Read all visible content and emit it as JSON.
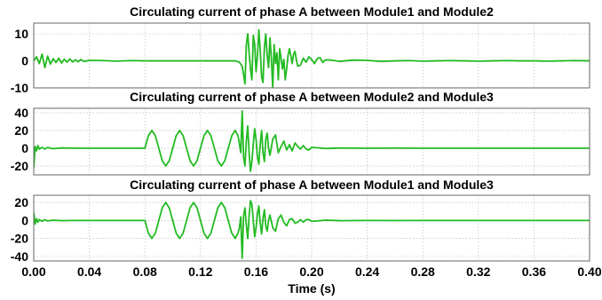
{
  "chart_data": [
    {
      "type": "line",
      "title": "Circulating current of phase A between Module1 and Module2",
      "xlabel": "",
      "ylabel": "",
      "xlim": [
        0.0,
        0.4
      ],
      "ylim": [
        -10,
        14
      ],
      "yticks": [
        10,
        0,
        -10
      ],
      "ytick_labels": [
        "10",
        "0",
        "-10"
      ],
      "grid": true,
      "series": [
        {
          "color": "#22bb22",
          "x": [
            0.0,
            0.002,
            0.004,
            0.006,
            0.008,
            0.01,
            0.012,
            0.014,
            0.016,
            0.018,
            0.02,
            0.022,
            0.024,
            0.026,
            0.028,
            0.03,
            0.032,
            0.034,
            0.036,
            0.04,
            0.05,
            0.06,
            0.07,
            0.08,
            0.09,
            0.1,
            0.11,
            0.12,
            0.13,
            0.14,
            0.145,
            0.148,
            0.15,
            0.151,
            0.152,
            0.153,
            0.154,
            0.155,
            0.156,
            0.157,
            0.158,
            0.159,
            0.16,
            0.161,
            0.162,
            0.163,
            0.164,
            0.165,
            0.166,
            0.167,
            0.168,
            0.169,
            0.17,
            0.171,
            0.172,
            0.173,
            0.174,
            0.175,
            0.176,
            0.177,
            0.178,
            0.179,
            0.18,
            0.181,
            0.182,
            0.183,
            0.184,
            0.185,
            0.186,
            0.187,
            0.188,
            0.189,
            0.19,
            0.192,
            0.194,
            0.196,
            0.198,
            0.2,
            0.202,
            0.204,
            0.206,
            0.208,
            0.21,
            0.214,
            0.22,
            0.23,
            0.24,
            0.25,
            0.26,
            0.27,
            0.28,
            0.29,
            0.3,
            0.31,
            0.32,
            0.33,
            0.34,
            0.35,
            0.36,
            0.37,
            0.38,
            0.39,
            0.4
          ],
          "y": [
            0,
            1.5,
            -1.0,
            2.5,
            -2.5,
            1.8,
            -1.2,
            0.8,
            -0.6,
            1.0,
            -0.8,
            0.6,
            -0.5,
            0.7,
            -0.4,
            0.4,
            -0.3,
            0.5,
            -0.2,
            0.2,
            0.1,
            -0.1,
            0.1,
            0.0,
            0.0,
            0.0,
            0.0,
            0.0,
            0.0,
            0.0,
            0.0,
            -0.5,
            -2.0,
            -5.0,
            -8.5,
            6.0,
            10.0,
            3.0,
            -3.0,
            -7.0,
            9.5,
            6.0,
            -4.0,
            2.0,
            11.5,
            4.0,
            -6.0,
            -8.0,
            5.0,
            10.0,
            2.0,
            -2.5,
            8.5,
            1.0,
            -10.0,
            6.0,
            -1.0,
            3.0,
            -7.0,
            4.5,
            1.0,
            -3.0,
            0.5,
            -7.0,
            -3.0,
            2.0,
            4.5,
            2.0,
            -1.0,
            2.5,
            3.5,
            0.5,
            -2.0,
            -1.5,
            1.0,
            -0.5,
            1.5,
            0.5,
            -1.0,
            0.8,
            1.2,
            -0.6,
            0.4,
            0.3,
            -0.2,
            0.3,
            0.2,
            -0.2,
            0.0,
            0.1,
            -0.1,
            0.0,
            0.1,
            0.0,
            -0.1,
            0.0,
            0.1,
            0.0,
            0.0,
            -0.1,
            0.0,
            0.1,
            0.0
          ]
        }
      ]
    },
    {
      "type": "line",
      "title": "Circulating current of phase A between Module2 and Module3",
      "xlabel": "",
      "ylabel": "",
      "xlim": [
        0.0,
        0.4
      ],
      "ylim": [
        -30,
        45
      ],
      "yticks": [
        40,
        20,
        0,
        -20
      ],
      "ytick_labels": [
        "40",
        "20",
        "0",
        "-20"
      ],
      "grid": true,
      "series": [
        {
          "color": "#22bb22",
          "x": [
            0.0,
            0.001,
            0.002,
            0.003,
            0.004,
            0.006,
            0.008,
            0.01,
            0.014,
            0.02,
            0.03,
            0.04,
            0.05,
            0.06,
            0.07,
            0.078,
            0.08,
            0.0825,
            0.085,
            0.0875,
            0.09,
            0.0925,
            0.095,
            0.0975,
            0.1,
            0.1025,
            0.105,
            0.1075,
            0.11,
            0.1125,
            0.115,
            0.1175,
            0.12,
            0.1225,
            0.125,
            0.1275,
            0.13,
            0.1325,
            0.135,
            0.1375,
            0.14,
            0.1425,
            0.145,
            0.147,
            0.148,
            0.149,
            0.15,
            0.151,
            0.152,
            0.153,
            0.154,
            0.155,
            0.156,
            0.157,
            0.158,
            0.159,
            0.16,
            0.161,
            0.162,
            0.163,
            0.164,
            0.165,
            0.166,
            0.167,
            0.168,
            0.169,
            0.17,
            0.172,
            0.174,
            0.176,
            0.178,
            0.18,
            0.182,
            0.184,
            0.186,
            0.188,
            0.19,
            0.192,
            0.194,
            0.196,
            0.198,
            0.2,
            0.204,
            0.21,
            0.22,
            0.24,
            0.26,
            0.28,
            0.3,
            0.32,
            0.34,
            0.36,
            0.38,
            0.4
          ],
          "y": [
            -22,
            2,
            -3,
            3,
            -1,
            1,
            -1,
            0.8,
            -0.5,
            0.3,
            0,
            0,
            0,
            0,
            0,
            0,
            0,
            14.1,
            20,
            14.1,
            0,
            -14.1,
            -20,
            -14.1,
            0,
            14.1,
            20,
            14.1,
            0,
            -14.1,
            -20,
            -14.1,
            0,
            14.1,
            20,
            14.1,
            0,
            -14.1,
            -20,
            -14.1,
            0,
            14.1,
            20,
            14.1,
            5,
            -5,
            42,
            -10,
            -20,
            8,
            25,
            -5,
            -26,
            -15,
            5,
            22,
            10,
            -10,
            -18,
            5,
            20,
            -5,
            -15,
            10,
            17,
            0,
            -8,
            10,
            15,
            -5,
            2,
            8,
            -2,
            4,
            -3,
            6,
            2,
            -1,
            3,
            -1,
            -2,
            1,
            0.5,
            -0.3,
            0.2,
            0,
            0.1,
            0,
            0,
            0,
            0,
            0,
            0,
            0
          ]
        }
      ]
    },
    {
      "type": "line",
      "title": "Circulating current of phase A between Module1 and Module3",
      "xlabel": "Time (s)",
      "ylabel": "",
      "xlim": [
        0.0,
        0.4
      ],
      "ylim": [
        -45,
        28
      ],
      "xticks": [
        0.0,
        0.04,
        0.08,
        0.12,
        0.16,
        0.2,
        0.24,
        0.28,
        0.32,
        0.36,
        0.4
      ],
      "xtick_labels": [
        "0.00",
        "0.04",
        "0.08",
        "0.12",
        "0.16",
        "0.20",
        "0.24",
        "0.28",
        "0.32",
        "0.36",
        "0.40"
      ],
      "yticks": [
        20,
        0,
        -20,
        -40
      ],
      "ytick_labels": [
        "20",
        "0",
        "-20",
        "-40"
      ],
      "grid": true,
      "series": [
        {
          "color": "#22bb22",
          "x": [
            0.0,
            0.001,
            0.002,
            0.003,
            0.004,
            0.006,
            0.008,
            0.01,
            0.014,
            0.02,
            0.03,
            0.04,
            0.05,
            0.06,
            0.07,
            0.078,
            0.08,
            0.0825,
            0.085,
            0.0875,
            0.09,
            0.0925,
            0.095,
            0.0975,
            0.1,
            0.1025,
            0.105,
            0.1075,
            0.11,
            0.1125,
            0.115,
            0.1175,
            0.12,
            0.1225,
            0.125,
            0.1275,
            0.13,
            0.1325,
            0.135,
            0.1375,
            0.14,
            0.1425,
            0.145,
            0.147,
            0.148,
            0.149,
            0.15,
            0.151,
            0.152,
            0.153,
            0.154,
            0.155,
            0.156,
            0.157,
            0.158,
            0.159,
            0.16,
            0.161,
            0.162,
            0.163,
            0.164,
            0.165,
            0.166,
            0.167,
            0.168,
            0.169,
            0.17,
            0.172,
            0.174,
            0.176,
            0.178,
            0.18,
            0.182,
            0.184,
            0.186,
            0.188,
            0.19,
            0.192,
            0.194,
            0.196,
            0.198,
            0.2,
            0.204,
            0.21,
            0.22,
            0.24,
            0.26,
            0.28,
            0.3,
            0.32,
            0.34,
            0.36,
            0.38,
            0.4
          ],
          "y": [
            9,
            -4,
            2,
            -2,
            1,
            -1,
            0.8,
            -0.5,
            0.3,
            -0.2,
            0,
            0,
            0,
            0,
            0,
            0,
            0,
            -14.1,
            -20,
            -14.1,
            0,
            14.1,
            20,
            14.1,
            0,
            -14.1,
            -20,
            -14.1,
            0,
            14.1,
            20,
            14.1,
            0,
            -14.1,
            -20,
            -14.1,
            0,
            14.1,
            20,
            14.1,
            0,
            -14.1,
            -20,
            -14.1,
            -8,
            4,
            -42,
            5,
            14,
            -5,
            -20,
            5,
            22,
            18,
            0,
            -18,
            -8,
            8,
            16,
            -3,
            -15,
            2,
            12,
            -6,
            -12,
            0,
            6,
            -8,
            -12,
            2,
            6,
            -2,
            -6,
            1,
            2,
            -3,
            -2,
            1,
            -2,
            1,
            1,
            -1,
            -0.5,
            0.3,
            -0.2,
            0,
            -0.1,
            0,
            0,
            0,
            0,
            0,
            0,
            0
          ]
        }
      ]
    }
  ]
}
